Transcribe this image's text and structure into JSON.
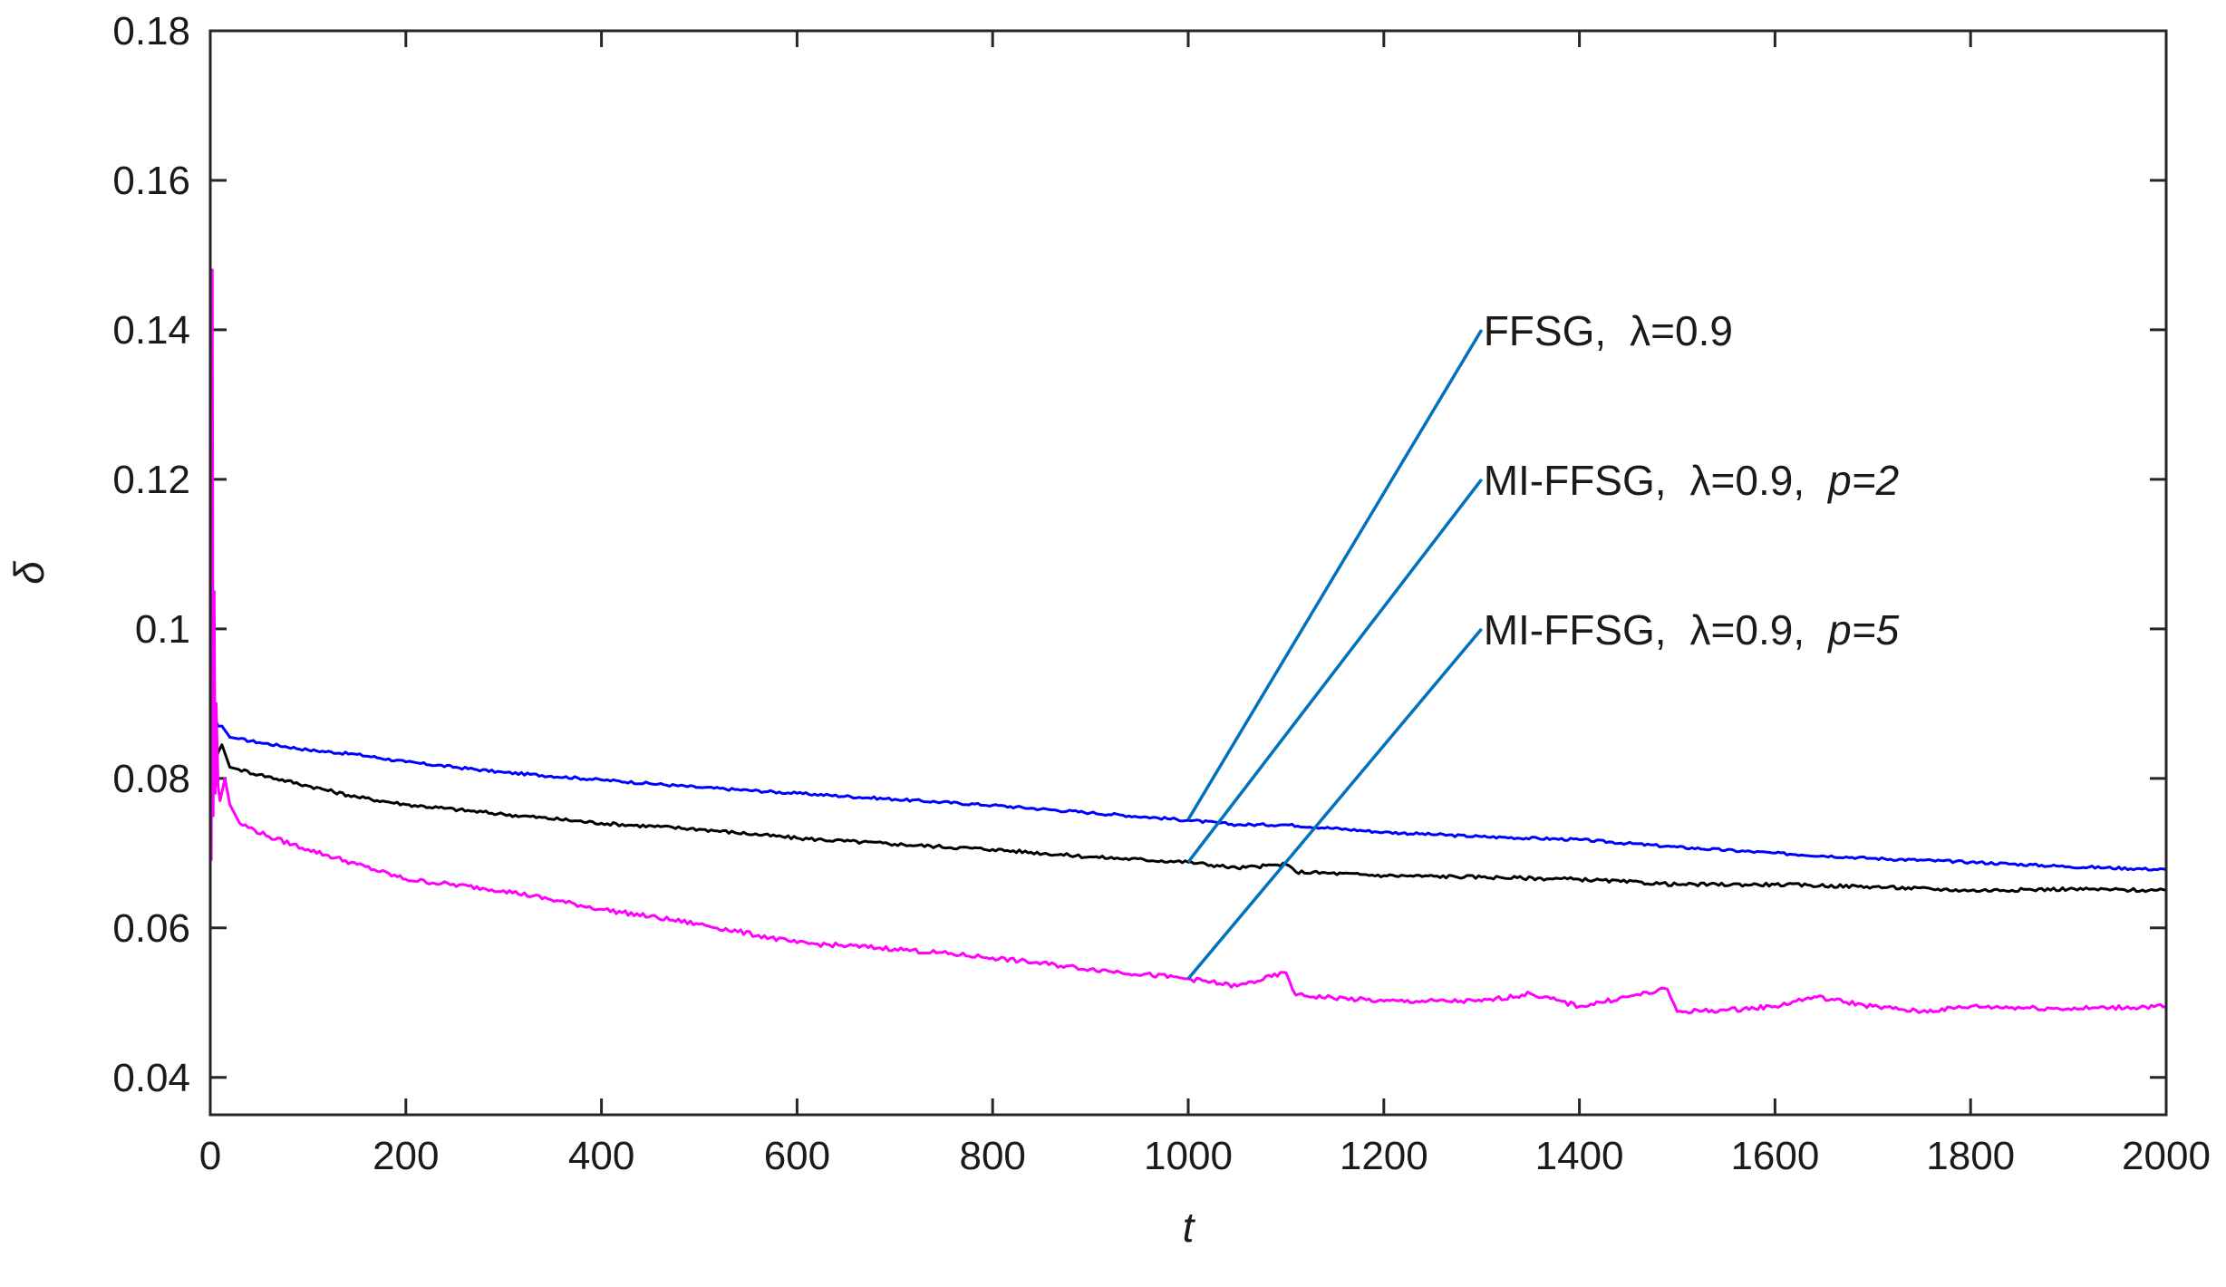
{
  "chart_data": {
    "type": "line",
    "xlabel": "t",
    "ylabel": "δ",
    "xlim": [
      0,
      2000
    ],
    "ylim": [
      0.035,
      0.18
    ],
    "xticks": [
      0,
      200,
      400,
      600,
      800,
      1000,
      1200,
      1400,
      1600,
      1800,
      2000
    ],
    "xtick_labels": [
      "0",
      "200",
      "400",
      "600",
      "800",
      "1000",
      "1200",
      "1400",
      "1600",
      "1800",
      "2000"
    ],
    "yticks": [
      0.04,
      0.06,
      0.08,
      0.1,
      0.12,
      0.14,
      0.16,
      0.18
    ],
    "ytick_labels": [
      "0.04",
      "0.06",
      "0.08",
      "0.1",
      "0.12",
      "0.14",
      "0.16",
      "0.18"
    ],
    "grid": false,
    "series": [
      {
        "name": "FFSG, λ=0.9",
        "color": "#0000ff",
        "x": [
          1,
          3,
          5,
          8,
          12,
          20,
          50,
          100,
          150,
          200,
          300,
          400,
          500,
          600,
          700,
          800,
          900,
          1000,
          1050,
          1100,
          1200,
          1300,
          1400,
          1500,
          1600,
          1700,
          1800,
          1900,
          2000
        ],
        "y": [
          0.095,
          0.09,
          0.088,
          0.087,
          0.087,
          0.0855,
          0.0848,
          0.0838,
          0.0832,
          0.0822,
          0.0808,
          0.0798,
          0.0788,
          0.078,
          0.0772,
          0.0764,
          0.0754,
          0.0744,
          0.0738,
          0.0738,
          0.0728,
          0.0722,
          0.0718,
          0.0708,
          0.07,
          0.0693,
          0.0688,
          0.0682,
          0.0678
        ]
      },
      {
        "name": "MI-FFSG, λ=0.9, p=2",
        "color": "#000000",
        "x": [
          1,
          3,
          5,
          8,
          12,
          20,
          50,
          100,
          150,
          200,
          300,
          400,
          500,
          600,
          700,
          800,
          900,
          1000,
          1050,
          1100,
          1110,
          1200,
          1300,
          1400,
          1500,
          1600,
          1700,
          1800,
          1900,
          2000
        ],
        "y": [
          0.092,
          0.086,
          0.082,
          0.0835,
          0.0845,
          0.0815,
          0.0805,
          0.079,
          0.0775,
          0.0765,
          0.0752,
          0.074,
          0.0732,
          0.072,
          0.0712,
          0.0705,
          0.0695,
          0.0688,
          0.068,
          0.0685,
          0.0675,
          0.067,
          0.0668,
          0.0665,
          0.0658,
          0.0658,
          0.0655,
          0.065,
          0.0652,
          0.065
        ]
      },
      {
        "name": "MI-FFSG, λ=0.9, p=5",
        "color": "#ff00ff",
        "x": [
          1,
          2,
          3,
          4,
          5,
          6,
          8,
          10,
          15,
          20,
          30,
          60,
          100,
          150,
          200,
          300,
          400,
          500,
          600,
          700,
          800,
          900,
          1000,
          1050,
          1100,
          1110,
          1200,
          1300,
          1350,
          1400,
          1450,
          1490,
          1500,
          1550,
          1600,
          1640,
          1700,
          1750,
          1800,
          1900,
          2000
        ],
        "y": [
          0.069,
          0.148,
          0.075,
          0.105,
          0.078,
          0.09,
          0.079,
          0.077,
          0.08,
          0.0765,
          0.074,
          0.0722,
          0.0705,
          0.0685,
          0.0665,
          0.065,
          0.0625,
          0.0605,
          0.058,
          0.0572,
          0.056,
          0.0545,
          0.0532,
          0.0522,
          0.054,
          0.051,
          0.0502,
          0.0502,
          0.0512,
          0.0495,
          0.0508,
          0.0518,
          0.0488,
          0.049,
          0.0495,
          0.0508,
          0.0495,
          0.0488,
          0.0495,
          0.0492,
          0.0495
        ]
      }
    ],
    "annotations": [
      {
        "label": "FFSG,",
        "lambda_text": "λ=0.9",
        "p_text": "",
        "anchor_x": 1000,
        "anchor_y": 0.0745,
        "label_x": 1300,
        "label_y": 0.14,
        "line_color": "#0072bd"
      },
      {
        "label": "MI-FFSG,",
        "lambda_text": "λ=0.9,",
        "p_text": "p=2",
        "anchor_x": 1000,
        "anchor_y": 0.0688,
        "label_x": 1300,
        "label_y": 0.12,
        "line_color": "#0072bd"
      },
      {
        "label": "MI-FFSG,",
        "lambda_text": "λ=0.9,",
        "p_text": "p=5",
        "anchor_x": 1000,
        "anchor_y": 0.0532,
        "label_x": 1300,
        "label_y": 0.1,
        "line_color": "#0072bd"
      }
    ]
  }
}
